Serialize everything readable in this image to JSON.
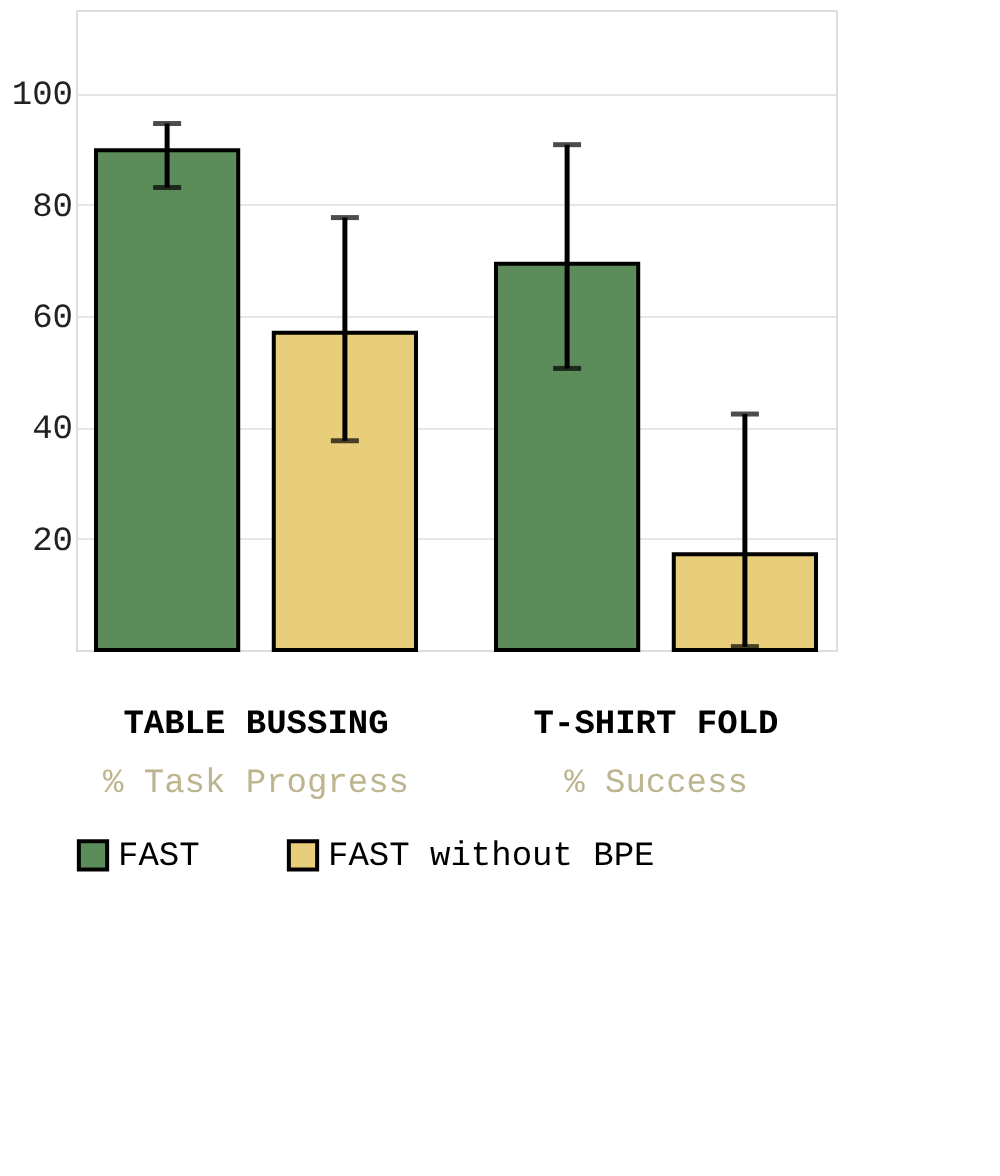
{
  "chart_data": {
    "type": "bar",
    "categories": [
      "TABLE BUSSING",
      "T-SHIRT FOLD"
    ],
    "series": [
      {
        "name": "FAST",
        "color": "#5b8c5a",
        "values": [
          89.8,
          69.4
        ],
        "errors": [
          [
            83.1,
            94.6
          ],
          [
            50.6,
            90.8
          ]
        ]
      },
      {
        "name": "FAST without BPE",
        "color": "#e8cd7a",
        "values": [
          57,
          17.2
        ],
        "errors": [
          [
            37.6,
            77.7
          ],
          [
            0.6,
            42.4
          ]
        ]
      }
    ],
    "annotations": [
      "% Task Progress",
      "% Success"
    ],
    "ylim": [
      0,
      115
    ],
    "yticks": [
      20,
      40,
      60,
      80,
      100
    ],
    "grid": "y",
    "legend": "bottom"
  }
}
